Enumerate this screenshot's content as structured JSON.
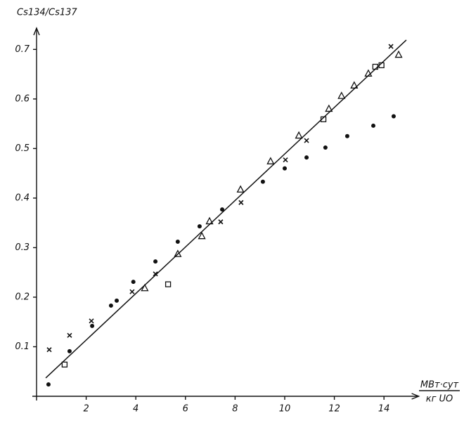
{
  "chart_data": {
    "type": "scatter",
    "y_label": "Cs134/Cs137",
    "x_label_top": "МВт·сут",
    "x_label_bottom": "кг UO",
    "xlim": [
      0,
      15.4
    ],
    "ylim": [
      0,
      0.743
    ],
    "xticks": [
      2,
      4,
      6,
      8,
      10,
      12,
      14
    ],
    "yticks": [
      0.1,
      0.2,
      0.3,
      0.4,
      0.5,
      0.6,
      0.7
    ],
    "series": [
      {
        "marker": "circle",
        "color": "#111",
        "x": [
          0.48,
          1.33,
          2.24,
          3.0,
          3.23,
          3.9,
          4.79,
          5.69,
          6.57,
          7.48,
          9.12,
          10.0,
          10.88,
          11.64,
          12.52,
          13.57,
          14.39
        ],
        "values": [
          0.024,
          0.091,
          0.142,
          0.183,
          0.193,
          0.231,
          0.272,
          0.312,
          0.343,
          0.377,
          0.433,
          0.46,
          0.482,
          0.502,
          0.525,
          0.546,
          0.565
        ]
      },
      {
        "marker": "x",
        "color": "#111",
        "x": [
          0.51,
          1.33,
          2.21,
          3.85,
          4.79,
          7.42,
          8.24,
          10.03,
          10.88,
          14.28
        ],
        "values": [
          0.094,
          0.123,
          0.152,
          0.211,
          0.247,
          0.352,
          0.391,
          0.477,
          0.516,
          0.706
        ]
      },
      {
        "marker": "triangle",
        "color": "#111",
        "x": [
          4.36,
          5.69,
          6.66,
          6.97,
          8.22,
          9.43,
          10.57,
          11.78,
          12.29,
          12.8,
          13.37,
          14.59
        ],
        "values": [
          0.218,
          0.287,
          0.323,
          0.353,
          0.417,
          0.474,
          0.526,
          0.58,
          0.606,
          0.627,
          0.651,
          0.689
        ]
      },
      {
        "marker": "square",
        "color": "#111",
        "x": [
          1.13,
          5.3,
          11.56,
          13.65,
          13.9
        ],
        "values": [
          0.064,
          0.226,
          0.559,
          0.665,
          0.668
        ]
      },
      {
        "marker": "line",
        "color": "#111",
        "x": [
          0.37,
          14.9
        ],
        "values": [
          0.037,
          0.719
        ]
      }
    ]
  }
}
